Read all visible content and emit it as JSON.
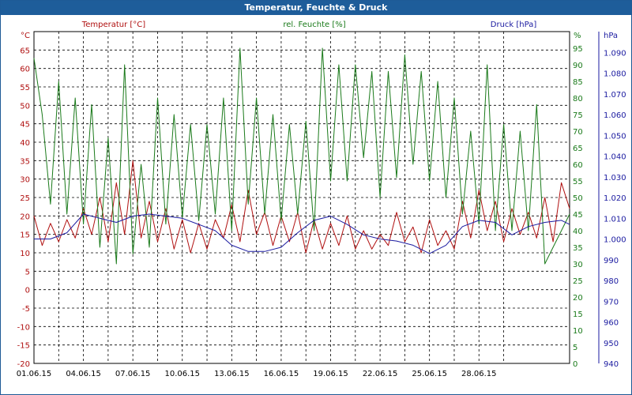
{
  "title": "Temperatur, Feuchte & Druck",
  "colors": {
    "temperature": "#b01010",
    "humidity": "#1a7a1a",
    "pressure": "#1a1aa0",
    "title_bg": "#1e5d9a"
  },
  "chart_data": {
    "type": "line",
    "title": "Temperatur, Feuchte & Druck",
    "x_ticks": [
      "01.06.15",
      "04.06.15",
      "07.06.15",
      "10.06.15",
      "13.06.15",
      "16.06.15",
      "19.06.15",
      "22.06.15",
      "25.06.15",
      "28.06.15"
    ],
    "x_range_days": [
      0,
      32.5
    ],
    "grid": true,
    "axes": {
      "temperature": {
        "label": "Temperatur [°C]",
        "unit": "°C",
        "min": -20,
        "max": 70,
        "ticks": [
          -20,
          -15,
          -10,
          -5,
          0,
          5,
          10,
          15,
          20,
          25,
          30,
          35,
          40,
          45,
          50,
          55,
          60,
          65
        ]
      },
      "humidity": {
        "label": "rel. Feuchte [%]",
        "unit": "%",
        "min": 0,
        "max": 100,
        "ticks": [
          0,
          5,
          10,
          15,
          20,
          25,
          30,
          35,
          40,
          45,
          50,
          55,
          60,
          65,
          70,
          75,
          80,
          85,
          90,
          95
        ]
      },
      "pressure": {
        "label": "Druck [hPa]",
        "unit": "hPa",
        "min": 940,
        "max": 1100,
        "ticks": [
          "940",
          "950",
          "960",
          "970",
          "980",
          "990",
          "1.000",
          "1.010",
          "1.020",
          "1.030",
          "1.040",
          "1.050",
          "1.060",
          "1.070",
          "1.080",
          "1.090"
        ]
      }
    },
    "series": [
      {
        "name": "Temperatur [°C]",
        "axis": "temperature",
        "x": [
          0,
          0.5,
          1,
          1.5,
          2,
          2.5,
          3,
          3.5,
          4,
          4.5,
          5,
          5.5,
          6,
          6.5,
          7,
          7.5,
          8,
          8.5,
          9,
          9.5,
          10,
          10.5,
          11,
          11.5,
          12,
          12.5,
          13,
          13.5,
          14,
          14.5,
          15,
          15.5,
          16,
          16.5,
          17,
          17.5,
          18,
          18.5,
          19,
          19.5,
          20,
          20.5,
          21,
          21.5,
          22,
          22.5,
          23,
          23.5,
          24,
          24.5,
          25,
          25.5,
          26,
          26.5,
          27,
          27.5,
          28,
          28.5,
          29,
          29.5,
          30,
          30.5,
          31,
          31.5,
          32,
          32.5
        ],
        "values": [
          20,
          12,
          18,
          13,
          19,
          14,
          22,
          15,
          25,
          13,
          29,
          15,
          35,
          14,
          24,
          13,
          22,
          11,
          19,
          10,
          18,
          11,
          19,
          14,
          23,
          13,
          27,
          15,
          21,
          12,
          20,
          13,
          21,
          10,
          19,
          11,
          18,
          12,
          20,
          11,
          16,
          11,
          15,
          12,
          21,
          13,
          17,
          10,
          19,
          12,
          16,
          11,
          24,
          14,
          27,
          16,
          24,
          13,
          22,
          15,
          21,
          14,
          25,
          13,
          29,
          22
        ]
      },
      {
        "name": "rel. Feuchte [%]",
        "axis": "humidity",
        "x": [
          0,
          0.5,
          1,
          1.5,
          2,
          2.5,
          3,
          3.5,
          4,
          4.5,
          5,
          5.5,
          6,
          6.5,
          7,
          7.5,
          8,
          8.5,
          9,
          9.5,
          10,
          10.5,
          11,
          11.5,
          12,
          12.5,
          13,
          13.5,
          14,
          14.5,
          15,
          15.5,
          16,
          16.5,
          17,
          17.5,
          18,
          18.5,
          19,
          19.5,
          20,
          20.5,
          21,
          21.5,
          22,
          22.5,
          23,
          23.5,
          24,
          24.5,
          25,
          25.5,
          26,
          26.5,
          27,
          27.5,
          28,
          28.5,
          29,
          29.5,
          30,
          30.5,
          31,
          31.5,
          32,
          32.5
        ],
        "values": [
          92,
          75,
          48,
          85,
          45,
          80,
          42,
          78,
          35,
          68,
          30,
          90,
          33,
          60,
          35,
          80,
          42,
          75,
          44,
          72,
          43,
          72,
          45,
          80,
          40,
          95,
          48,
          80,
          45,
          75,
          43,
          72,
          45,
          73,
          40,
          95,
          55,
          90,
          55,
          90,
          62,
          88,
          50,
          88,
          56,
          93,
          60,
          88,
          55,
          85,
          50,
          80,
          45,
          70,
          42,
          90,
          40,
          72,
          40,
          70,
          40,
          78,
          30,
          35,
          40,
          45
        ]
      },
      {
        "name": "Druck [hPa]",
        "axis": "pressure",
        "x": [
          0,
          1,
          2,
          3,
          4,
          5,
          6,
          7,
          8,
          9,
          10,
          11,
          12,
          13,
          14,
          15,
          16,
          17,
          18,
          19,
          20,
          21,
          22,
          23,
          24,
          25,
          26,
          27,
          28,
          29,
          30,
          31,
          32,
          32.5
        ],
        "values": [
          1000,
          1000,
          1003,
          1012,
          1010,
          1008,
          1011,
          1012,
          1011,
          1010,
          1007,
          1004,
          997,
          994,
          994,
          996,
          1003,
          1009,
          1011,
          1007,
          1002,
          1000,
          999,
          997,
          993,
          997,
          1006,
          1009,
          1008,
          1002,
          1006,
          1008,
          1009,
          1007
        ]
      }
    ]
  }
}
